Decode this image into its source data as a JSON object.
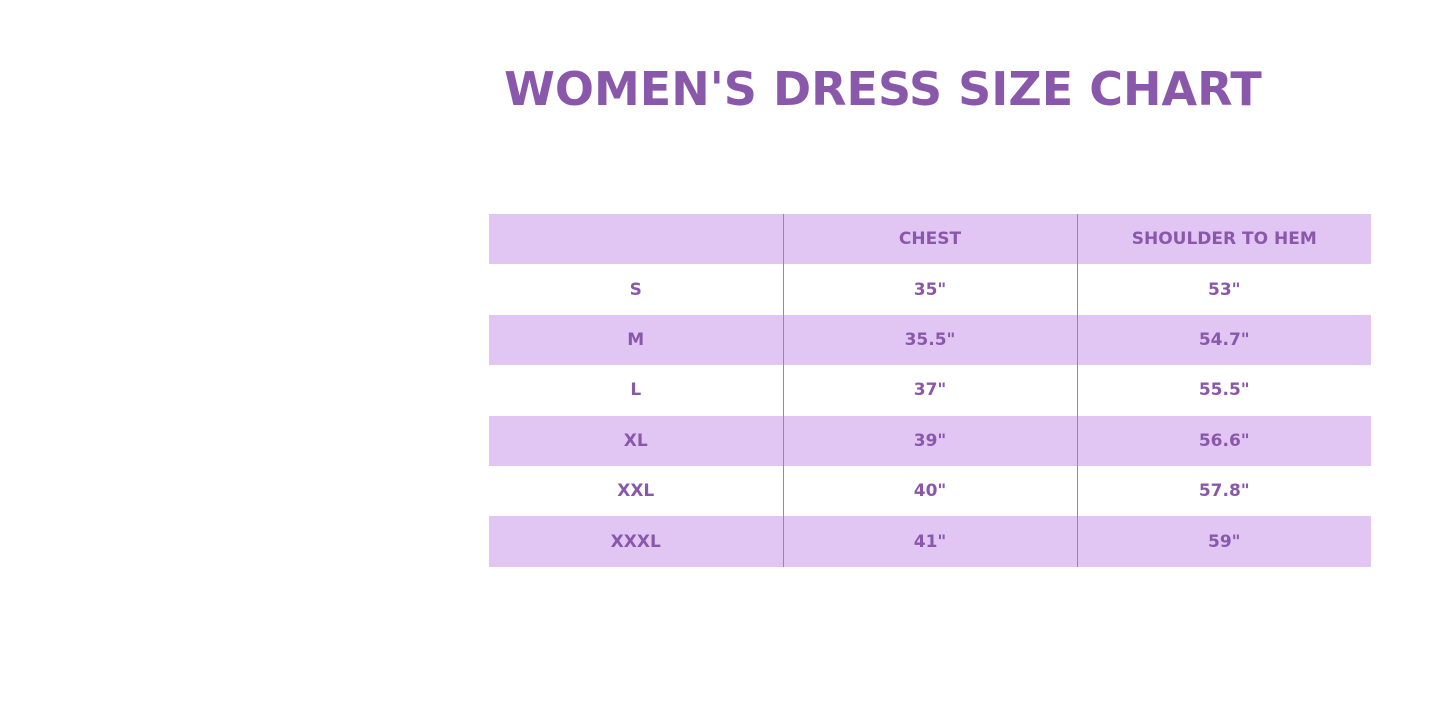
{
  "title": "WOMEN'S DRESS SIZE CHART",
  "colors": {
    "accent_text": "#8a58ab",
    "row_shade": "#e1c6f4"
  },
  "table": {
    "headers": [
      "",
      "CHEST",
      "SHOULDER TO HEM"
    ],
    "rows": [
      [
        "S",
        "35\"",
        "53\""
      ],
      [
        "M",
        "35.5\"",
        "54.7\""
      ],
      [
        "L",
        "37\"",
        "55.5\""
      ],
      [
        "XL",
        "39\"",
        "56.6\""
      ],
      [
        "XXL",
        "40\"",
        "57.8\""
      ],
      [
        "XXXL",
        "41\"",
        "59\""
      ]
    ]
  }
}
